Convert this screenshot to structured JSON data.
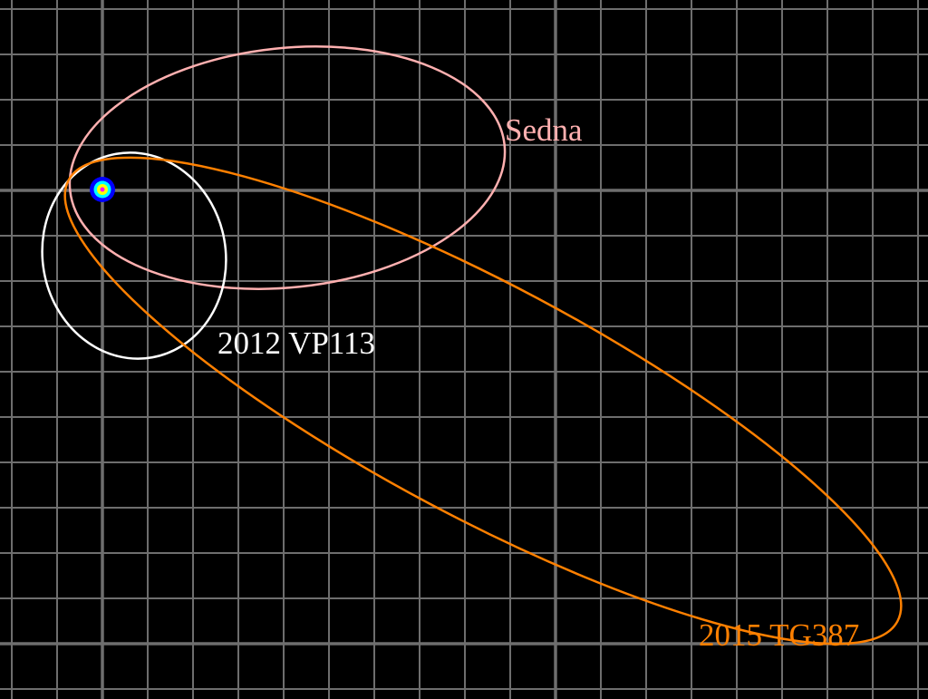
{
  "orbits": [
    {
      "name": "Sedna",
      "color": "#ffb0b0"
    },
    {
      "name": "2012 VP113",
      "color": "#ffffff"
    },
    {
      "name": "2015 TG387",
      "color": "#ff8000"
    }
  ],
  "sun": {
    "icon": "sun-icon",
    "colors": [
      "#0000ff",
      "#00ffff",
      "#ffff00",
      "#ff00ff"
    ]
  },
  "grid": {
    "color": "#6e6e6e",
    "major_every": 10
  }
}
